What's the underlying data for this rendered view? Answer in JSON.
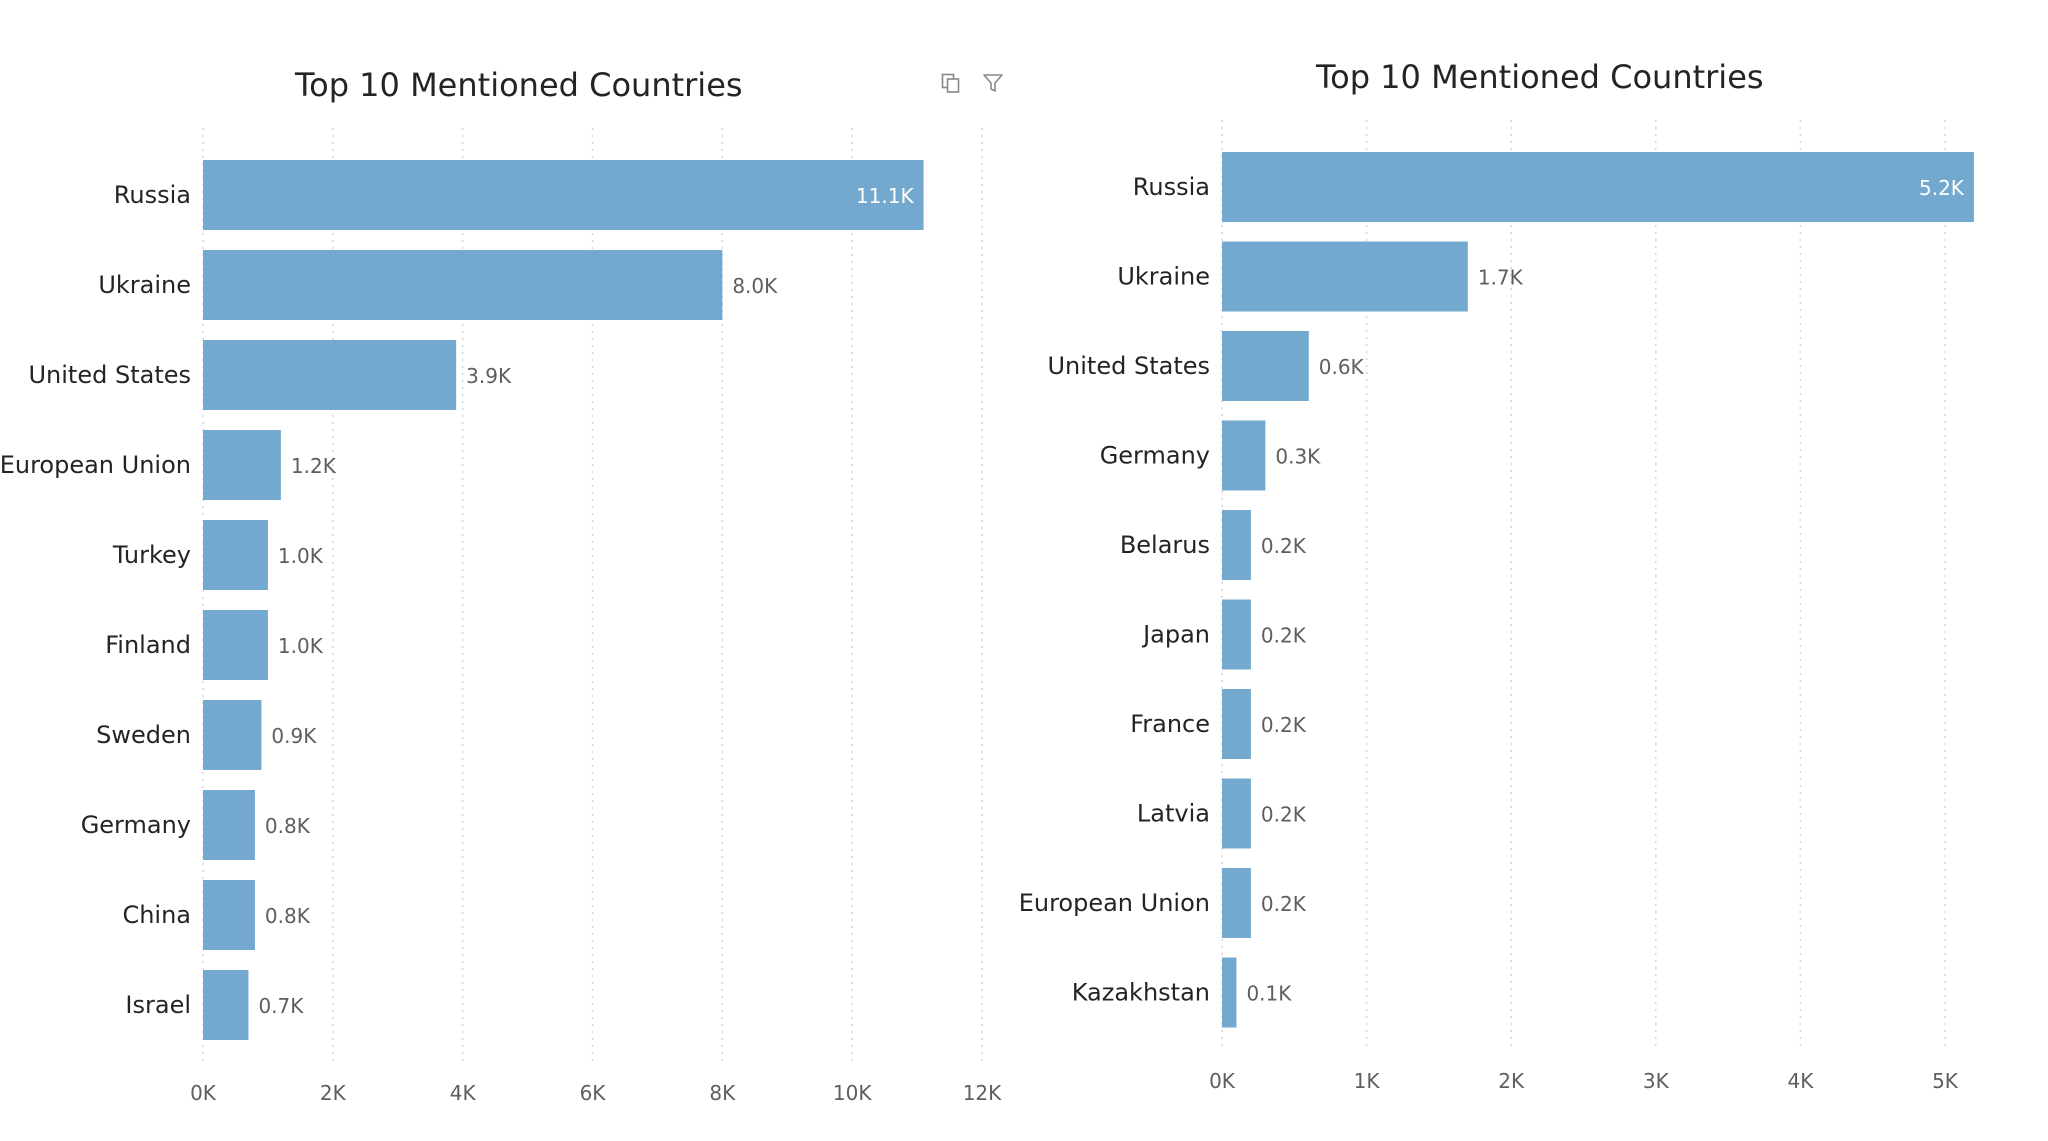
{
  "chart_data": [
    {
      "type": "bar",
      "orientation": "horizontal",
      "title": "Top 10 Mentioned Countries",
      "categories": [
        "Russia",
        "Ukraine",
        "United States",
        "European Union",
        "Turkey",
        "Finland",
        "Sweden",
        "Germany",
        "China",
        "Israel"
      ],
      "values": [
        11100,
        8000,
        3900,
        1200,
        1000,
        1000,
        900,
        800,
        800,
        700
      ],
      "data_labels": [
        "11.1K",
        "8.0K",
        "3.9K",
        "1.2K",
        "1.0K",
        "1.0K",
        "0.9K",
        "0.8K",
        "0.8K",
        "0.7K"
      ],
      "x_ticks": [
        0,
        2000,
        4000,
        6000,
        8000,
        10000,
        12000
      ],
      "x_tick_labels": [
        "0K",
        "2K",
        "4K",
        "6K",
        "8K",
        "10K",
        "12K"
      ],
      "xlim": [
        0,
        12000
      ],
      "grid": "vertical dotted",
      "color": "#74a9cf"
    },
    {
      "type": "bar",
      "orientation": "horizontal",
      "title": "Top 10 Mentioned Countries",
      "categories": [
        "Russia",
        "Ukraine",
        "United States",
        "Germany",
        "Belarus",
        "Japan",
        "France",
        "Latvia",
        "European Union",
        "Kazakhstan"
      ],
      "values": [
        5200,
        1700,
        600,
        300,
        200,
        200,
        200,
        200,
        200,
        100
      ],
      "data_labels": [
        "5.2K",
        "1.7K",
        "0.6K",
        "0.3K",
        "0.2K",
        "0.2K",
        "0.2K",
        "0.2K",
        "0.2K",
        "0.1K"
      ],
      "x_ticks": [
        0,
        1000,
        2000,
        3000,
        4000,
        5000
      ],
      "x_tick_labels": [
        "0K",
        "1K",
        "2K",
        "3K",
        "4K",
        "5K"
      ],
      "xlim": [
        0,
        5000
      ],
      "grid": "vertical dotted",
      "color": "#74a9cf"
    }
  ],
  "toolbar": {
    "icons": [
      "copy-icon",
      "filter-icon"
    ]
  }
}
